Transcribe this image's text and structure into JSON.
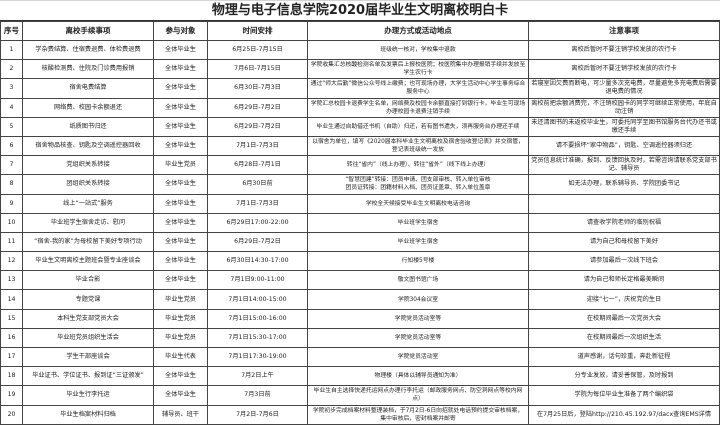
{
  "title": "物理与电子信息学院2020届毕业生文明离校明白卡",
  "headers": [
    "序号",
    "离校手续事项",
    "参与对象",
    "时间安排",
    "办理方式或活动地点",
    "注意事项"
  ],
  "rows": [
    [
      "1",
      "学杂费结算、住宿费退费、体检费退费",
      "全体毕业生",
      "6月25日-7月15日",
      "班级统一核对，学校集中退款",
      "离校后暂时不要注销学校发放的农行卡"
    ],
    [
      "2",
      "核酸检测费、住院及门诊费用报销",
      "全体毕业生",
      "7月6日-7月15日",
      "学院收集汇总核酸检测名单及发票后上报校医院；校医院集中办理报销手续并发放至学生农行卡",
      "离校后暂时不要注销学校发放的农行卡"
    ],
    [
      "3",
      "宿舍电费结算",
      "全体毕业生",
      "6月30日-7月3日",
      "通过“师大后勤”微信公众号线上缴费；也可现场办理，大学生活动中心学生事务综合服务中心",
      "若寝室因欠费而断电，可少量多次充电费，尽量避免多充电费后需要退电费的情况"
    ],
    [
      "4",
      "网络费、校园卡余额退还",
      "全体毕业生",
      "6月29日-7月2日",
      "学院汇总校园卡退费学生名单，网络费及校园卡余额直接打到银行卡，毕业生可现场办理校园卡退费注销手续",
      "离校前把余额消费完，不注销校园卡的同学可继续正常使用，年底自动注销"
    ],
    [
      "5",
      "纸质图书归还",
      "全体毕业生",
      "6月29日-7月2日",
      "毕业生通过自助借还书机（自助）归还，若有图书遗失，须再服务台办理还手续",
      "未还清图书的未返校毕业生，可委托同学至图书馆服务台代办还书或缴还手续"
    ],
    [
      "6",
      "宿舍物品核查、钥匙及空调遥控器回收",
      "全体毕业生",
      "7月1日-7月3日",
      "以宿舍为单位，填写《2020届本科毕业生文明离校及宿舍验收登记表》并交宿管，登记表班级统一发放",
      "请不要损坏“家中物品”，钥匙、空调遥控器须归还"
    ],
    [
      "7",
      "党组织关系转接",
      "毕业生党员",
      "6月28日-7月1日",
      "转往“省内”（线上办理）、转往“省外”（线下线上办理）",
      "党员信息统计准确，报到、反馈回执及时，若需咨询请联系党支部书记、辅导员"
    ],
    [
      "8",
      "团组织关系转接",
      "全体毕业生",
      "6月30日前",
      "“智慧团建”转接：团员申请、团支部审核、转入单位审核\n团员证转接：团籍材料入档、团员证盖章、转入单位盖章",
      "如无法办理，联系辅导员、学院团委书记"
    ],
    [
      "9",
      "线上“一站式”服务",
      "全体毕业生",
      "7月1日-7月3日",
      "学校全天候接受毕业生文明离校电话咨询",
      ""
    ],
    [
      "10",
      "毕业班学生宿舍走访、慰问",
      "全体毕业生",
      "6月29日17:00-22:00",
      "毕业班学生宿舍",
      "请查收学院老师的临别祝福"
    ],
    [
      "11",
      "“宿舍-我的家”为母校留下美好专项行动",
      "全体毕业生",
      "6月29日-7月2日",
      "毕业班学生宿舍",
      "请为自己和母校留下美好"
    ],
    [
      "12",
      "毕业生文明离校主题班会暨专业座谈会",
      "全体毕业生",
      "6月30日14:30-17:00",
      "行知楼5号楼",
      "请参加最后一次线下班会"
    ],
    [
      "13",
      "毕业合影",
      "全体毕业生",
      "7月1日9:00-11:00",
      "敬文图书馆广场",
      "请为自己和师长定格最美瞬间"
    ],
    [
      "14",
      "专题党课",
      "毕业生党员",
      "7月1日14:00-15:00",
      "学院304会议室",
      "迎接“七一”，庆祝党的生日"
    ],
    [
      "15",
      "本科生党支部党员大会",
      "毕业生党员",
      "7月1日15:00-16:00",
      "学院党员活动室等",
      "在校期间最后一次党员大会"
    ],
    [
      "16",
      "毕业班党员组织生活会",
      "毕业生党员",
      "7月1日15:30-17:00",
      "学院党员活动室等",
      "在校期间最后一次组织生活"
    ],
    [
      "17",
      "学生干部座谈会",
      "毕业生代表",
      "7月1日17:30-19:00",
      "学院党员活动室",
      "道声感谢，话句珍重，奔赴新征程"
    ],
    [
      "18",
      "毕业证书、学位证书、报到证“三证颁发”",
      "全体毕业生",
      "7月2日上午",
      "物理楼（具体以辅导员通知为准）",
      "分专业发放，请妥善保管，及时报到"
    ],
    [
      "19",
      "毕业生行李托运",
      "全体毕业生",
      "7月3日前",
      "毕业生自主选择快递托运网点办理行李托运（邮政服务网点、防空洞网点等校内网点）",
      "学院为每位毕业生准备了两个编织袋"
    ],
    [
      "20",
      "毕业生档案材料归档",
      "辅导员、班干",
      "7月2日-7月6日",
      "学院初步完成档案材料整理装档，于7月2日-6日向招就处电话预约提交审核档案，集中审核后，密封档案并邮寄",
      "在7月25日后，登陆http://210.45.192.97/dacx查询EMS详情"
    ]
  ]
}
